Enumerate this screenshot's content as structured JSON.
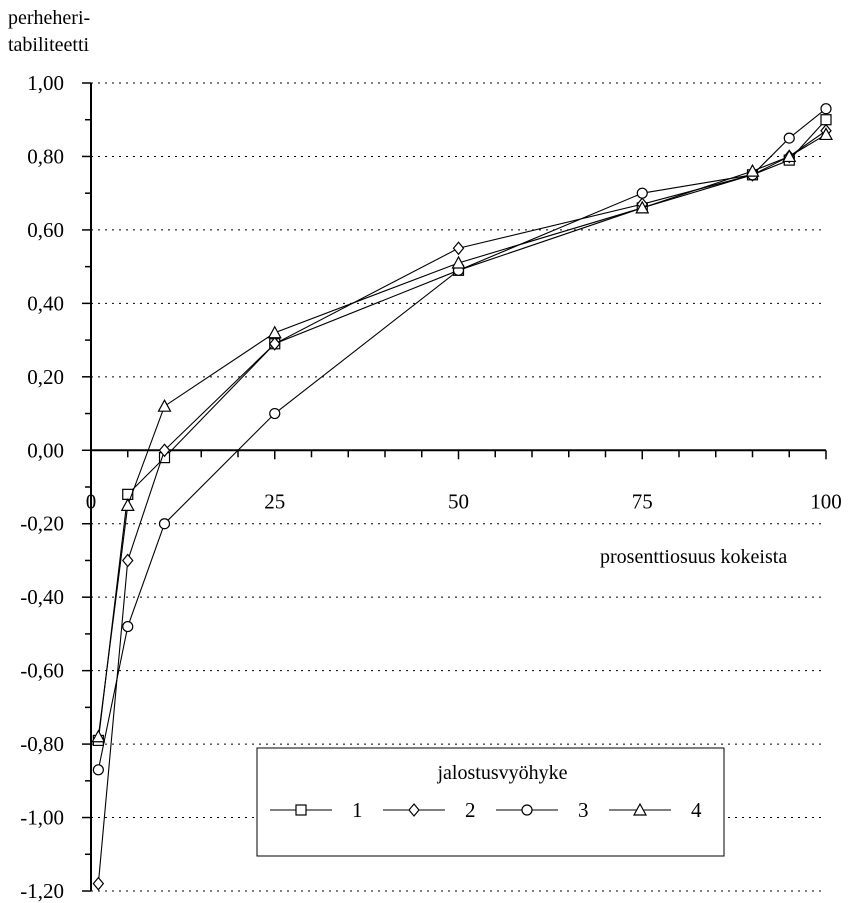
{
  "chart_data": {
    "type": "line",
    "ylabel_lines": [
      "perheheri-",
      "tabiliteetti"
    ],
    "xlabel": "prosenttiosuus kokeista",
    "ylim": [
      -1.2,
      1.0
    ],
    "xlim": [
      0,
      100
    ],
    "y_ticks": [
      {
        "value": 1.0,
        "label": "1,00"
      },
      {
        "value": 0.8,
        "label": "0,80"
      },
      {
        "value": 0.6,
        "label": "0,60"
      },
      {
        "value": 0.4,
        "label": "0,40"
      },
      {
        "value": 0.2,
        "label": "0,20"
      },
      {
        "value": 0.0,
        "label": "0,00"
      },
      {
        "value": -0.2,
        "label": "-0,20"
      },
      {
        "value": -0.4,
        "label": "-0,40"
      },
      {
        "value": -0.6,
        "label": "-0,60"
      },
      {
        "value": -0.8,
        "label": "-0,80"
      },
      {
        "value": -1.0,
        "label": "-1,00"
      },
      {
        "value": -1.2,
        "label": "-1,20"
      }
    ],
    "x_ticks": [
      {
        "value": 0,
        "label": "0"
      },
      {
        "value": 25,
        "label": "25"
      },
      {
        "value": 50,
        "label": "50"
      },
      {
        "value": 75,
        "label": "75"
      },
      {
        "value": 100,
        "label": "100"
      }
    ],
    "grid": "horizontal dotted",
    "legend": {
      "title": "jalostusvyöhyke",
      "placement": "bottom-center"
    },
    "series": [
      {
        "name": "1",
        "marker": "square",
        "x": [
          1,
          5,
          10,
          25,
          50,
          75,
          90,
          95,
          100
        ],
        "y": [
          -0.79,
          -0.12,
          -0.02,
          0.29,
          0.49,
          0.66,
          0.75,
          0.79,
          0.9
        ]
      },
      {
        "name": "2",
        "marker": "diamond",
        "x": [
          1,
          5,
          10,
          25,
          50,
          75,
          90,
          95,
          100
        ],
        "y": [
          -1.18,
          -0.3,
          0.0,
          0.29,
          0.55,
          0.67,
          0.75,
          0.8,
          0.87
        ]
      },
      {
        "name": "3",
        "marker": "circle",
        "x": [
          1,
          5,
          10,
          25,
          50,
          75,
          90,
          95,
          100
        ],
        "y": [
          -0.87,
          -0.48,
          -0.2,
          0.1,
          0.49,
          0.7,
          0.75,
          0.85,
          0.93
        ]
      },
      {
        "name": "4",
        "marker": "triangle",
        "x": [
          1,
          5,
          10,
          25,
          50,
          75,
          90,
          95,
          100
        ],
        "y": [
          -0.78,
          -0.15,
          0.12,
          0.32,
          0.51,
          0.66,
          0.76,
          0.8,
          0.86
        ]
      }
    ]
  }
}
